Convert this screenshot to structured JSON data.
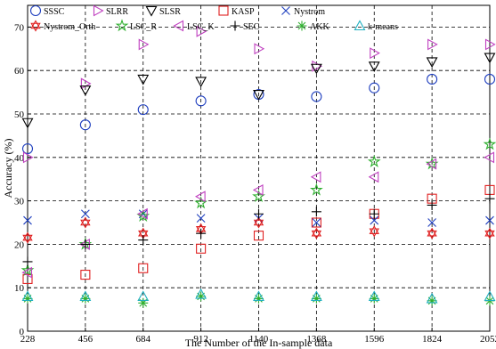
{
  "chart_data": {
    "type": "scatter",
    "title": "",
    "xlabel": "The Number of the In-sample data",
    "ylabel": "Accuracy (%)",
    "x": [
      228,
      456,
      684,
      912,
      1140,
      1368,
      1596,
      1824,
      2052
    ],
    "xticks": [
      "228",
      "456",
      "684",
      "912",
      "1140",
      "1368",
      "1596",
      "1824",
      "2052"
    ],
    "yticks": [
      "0",
      "10",
      "20",
      "30",
      "40",
      "50",
      "60",
      "70"
    ],
    "ylim": [
      0,
      75
    ],
    "grid": true,
    "grid_style": "dashed",
    "legend_position": "top",
    "series": [
      {
        "name": "SSSC",
        "marker": "circle",
        "color": "#1f3fbf",
        "values": [
          42,
          47.5,
          51,
          53,
          54.5,
          54,
          56,
          58,
          58
        ]
      },
      {
        "name": "SLRR",
        "marker": "triangle-right",
        "color": "#c040c0",
        "values": [
          40,
          57,
          66,
          69,
          65,
          61,
          64,
          66,
          66
        ]
      },
      {
        "name": "SLSR",
        "marker": "triangle-down",
        "color": "#000000",
        "values": [
          48,
          55.5,
          58,
          57.5,
          54.5,
          60.5,
          61,
          62,
          63
        ]
      },
      {
        "name": "KASP",
        "marker": "square",
        "color": "#e02020",
        "values": [
          12,
          13,
          14.5,
          19,
          22,
          25,
          27,
          30.5,
          32.5
        ]
      },
      {
        "name": "Nystrom",
        "marker": "x",
        "color": "#1f3fbf",
        "values": [
          25.5,
          27,
          27,
          26,
          26,
          25,
          25.5,
          25,
          25.5
        ]
      },
      {
        "name": "Nystrom_Orth",
        "marker": "hexagram",
        "color": "#e02020",
        "values": [
          21.5,
          25,
          22.5,
          23.5,
          25,
          22.5,
          23,
          22.5,
          22.5
        ]
      },
      {
        "name": "LSC_R",
        "marker": "star",
        "color": "#30b030",
        "values": [
          14,
          20,
          26.5,
          29.5,
          31,
          32.5,
          39,
          38.5,
          43
        ]
      },
      {
        "name": "LSC_K",
        "marker": "triangle-left",
        "color": "#c040c0",
        "values": [
          13.5,
          20,
          27,
          31,
          32.5,
          35.5,
          35.5,
          38.5,
          40
        ]
      },
      {
        "name": "SEC",
        "marker": "plus",
        "color": "#000000",
        "values": [
          16,
          20,
          21,
          22.5,
          27,
          27.5,
          27,
          29,
          30.5
        ]
      },
      {
        "name": "AKK",
        "marker": "asterisk",
        "color": "#30b030",
        "values": [
          7.5,
          7.5,
          6.5,
          8,
          7.5,
          7.5,
          7.5,
          7,
          7
        ]
      },
      {
        "name": "k-means",
        "marker": "triangle-up",
        "color": "#20b0c0",
        "values": [
          8,
          8,
          8,
          8.5,
          8,
          8,
          8,
          7.5,
          8
        ]
      }
    ]
  }
}
